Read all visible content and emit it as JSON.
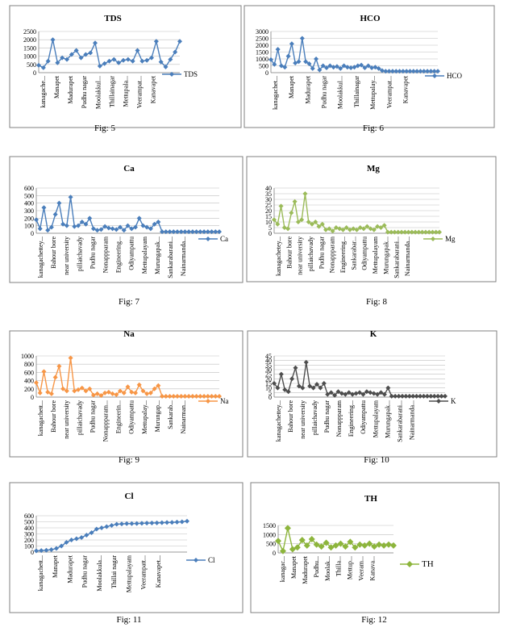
{
  "charts": [
    {
      "id": "tds",
      "caption": "Fig: 5",
      "color": "#4a7ebb",
      "marker": "diamond",
      "chart_data": {
        "type": "line",
        "title": "TDS",
        "legend": "right",
        "ylim": [
          0,
          2500
        ],
        "yticks": [
          0,
          500,
          1000,
          1500,
          2000,
          2500
        ],
        "grid": true,
        "tick_labels": [
          "kanagache...",
          "Manapet",
          "Madurapet",
          "Pudhu nagar",
          "Moolakkul...",
          "Thillainagar",
          "Mettupala...",
          "Veerampat...",
          "Kanavapet"
        ],
        "series": [
          {
            "name": "TDS",
            "values": [
              450,
              300,
              700,
              2000,
              600,
              900,
              800,
              1100,
              1350,
              900,
              1100,
              1200,
              1800,
              400,
              550,
              700,
              800,
              600,
              750,
              800,
              700,
              1350,
              700,
              750,
              900,
              1900,
              650,
              350,
              800,
              1250,
              1900
            ]
          }
        ]
      }
    },
    {
      "id": "hco",
      "caption": "Fig: 6",
      "color": "#4a7ebb",
      "marker": "diamond",
      "chart_data": {
        "type": "line",
        "title": "HCO",
        "legend": "right",
        "ylim": [
          0,
          3000
        ],
        "yticks": [
          0,
          500,
          1000,
          1500,
          2000,
          2500,
          3000
        ],
        "grid": true,
        "tick_labels": [
          "kanagachet...",
          "Manapet",
          "Madurapet",
          "Pudhu nagar",
          "Moolakkul...",
          "Thillainagar",
          "Mettupalay...",
          "Veerampat...",
          "Kanavapet"
        ],
        "series": [
          {
            "name": "HCO",
            "values": [
              950,
              600,
              1700,
              500,
              400,
              1200,
              2100,
              700,
              800,
              2500,
              800,
              650,
              300,
              1000,
              200,
              500,
              350,
              500,
              400,
              450,
              300,
              500,
              400,
              350,
              400,
              500,
              550,
              350,
              500,
              350,
              400,
              300,
              150,
              100,
              100,
              100,
              100,
              100,
              100,
              100,
              100,
              100,
              100,
              100,
              100,
              100,
              100,
              100,
              100
            ]
          }
        ]
      }
    },
    {
      "id": "ca",
      "caption": "Fig: 7",
      "color": "#4a7ebb",
      "marker": "diamond",
      "chart_data": {
        "type": "line",
        "title": "Ca",
        "legend": "right",
        "ylim": [
          0,
          600
        ],
        "yticks": [
          0,
          100,
          200,
          300,
          400,
          500,
          600
        ],
        "grid": true,
        "tick_labels": [
          "kanagachettey...",
          "Bahour bore",
          "near university",
          "pillaichavady",
          "Pudhu nagar",
          "Nonappparam",
          "Engineering...",
          "Odiyampattu",
          "Mettupalayam",
          "Murungapak...",
          "Sankarabarani...",
          "Nainarmanda..."
        ],
        "series": [
          {
            "name": "Ca",
            "values": [
              180,
              60,
              340,
              40,
              80,
              250,
              400,
              120,
              100,
              480,
              90,
              100,
              150,
              120,
              200,
              60,
              40,
              50,
              90,
              70,
              60,
              50,
              80,
              40,
              100,
              60,
              80,
              200,
              100,
              80,
              60,
              120,
              150,
              20,
              20,
              20,
              20,
              20,
              20,
              20,
              20,
              20,
              20,
              20,
              20,
              20,
              20,
              20,
              20
            ]
          }
        ]
      }
    },
    {
      "id": "mg",
      "caption": "Fig: 8",
      "color": "#9bbb59",
      "marker": "diamond",
      "chart_data": {
        "type": "line",
        "title": "Mg",
        "legend": "right",
        "ylim": [
          0,
          40
        ],
        "yticks": [
          0,
          5,
          10,
          15,
          20,
          25,
          30,
          35,
          40
        ],
        "grid": true,
        "tick_labels": [
          "kanagachetey...",
          "Bahour bore",
          "near university",
          "pillaichavady",
          "Pudhu nagar",
          "Nonappparam",
          "Engineering...",
          "Sankarabar...",
          "Odiyampattu",
          "Mettupalayam",
          "Murungapak...",
          "Sankarabarani...",
          "Nainarmanda..."
        ],
        "series": [
          {
            "name": "Mg",
            "values": [
              12,
              8,
              24,
              5,
              4,
              18,
              28,
              10,
              12,
              35,
              10,
              8,
              10,
              6,
              8,
              3,
              4,
              2,
              5,
              4,
              3,
              5,
              3,
              4,
              3,
              5,
              4,
              6,
              4,
              3,
              6,
              5,
              7,
              1,
              1,
              1,
              1,
              1,
              1,
              1,
              1,
              1,
              1,
              1,
              1,
              1,
              1,
              1,
              1
            ]
          }
        ]
      }
    },
    {
      "id": "na",
      "caption": "Fig: 9",
      "color": "#f79646",
      "marker": "diamond",
      "chart_data": {
        "type": "line",
        "title": "Na",
        "legend": "right",
        "ylim": [
          0,
          1000
        ],
        "yticks": [
          0,
          200,
          400,
          600,
          800,
          1000
        ],
        "grid": true,
        "tick_labels": [
          "kanagachett...",
          "Bahour bore",
          "near university",
          "pillaichavady",
          "Pudhu nagar",
          "Nonappparam...",
          "Engineerin...",
          "Odiyampattu",
          "Mettupalay...",
          "Murungap...",
          "Sankarab...",
          "Nainarman..."
        ],
        "series": [
          {
            "name": "Na",
            "values": [
              350,
              100,
              620,
              120,
              80,
              480,
              750,
              200,
              150,
              950,
              150,
              180,
              220,
              150,
              200,
              50,
              80,
              40,
              100,
              120,
              80,
              60,
              150,
              100,
              250,
              120,
              100,
              300,
              150,
              80,
              100,
              200,
              280,
              20,
              20,
              20,
              20,
              20,
              20,
              20,
              20,
              20,
              20,
              20,
              20,
              20,
              20,
              20,
              20
            ]
          }
        ]
      }
    },
    {
      "id": "k",
      "caption": "Fig: 10",
      "color": "#4d4d4d",
      "marker": "diamond",
      "chart_data": {
        "type": "line",
        "title": "K",
        "legend": "right",
        "ylim": [
          0,
          45
        ],
        "yticks": [
          0,
          5,
          10,
          15,
          20,
          25,
          30,
          35,
          40,
          45
        ],
        "grid": true,
        "tick_labels": [
          "kanagachettey...",
          "Bahour bore",
          "near university",
          "pillaichavady",
          "Pudhu nagar",
          "Nonappparam",
          "Engineering...",
          "Odiyampattu",
          "Mettupalayam",
          "Murungapak...",
          "Sankarabarani...",
          "Nainarmanda..."
        ],
        "series": [
          {
            "name": "K",
            "values": [
              15,
              10,
              25,
              8,
              6,
              20,
              32,
              12,
              10,
              38,
              12,
              10,
              14,
              10,
              15,
              3,
              5,
              2,
              6,
              4,
              3,
              5,
              3,
              4,
              5,
              3,
              6,
              5,
              4,
              3,
              5,
              3,
              10,
              1,
              1,
              1,
              1,
              1,
              1,
              1,
              1,
              1,
              1,
              1,
              1,
              1,
              1,
              1,
              1
            ]
          }
        ]
      }
    },
    {
      "id": "cl",
      "caption": "Fig: 11",
      "color": "#4a7ebb",
      "marker": "diamond",
      "chart_data": {
        "type": "line",
        "title": "Cl",
        "legend": "right",
        "ylim": [
          0,
          600
        ],
        "yticks": [
          0,
          100,
          200,
          300,
          400,
          500,
          600
        ],
        "grid": true,
        "tick_labels": [
          "kanagachett...",
          "Manapet",
          "Madurapet",
          "Pudhu nagar",
          "Moolakkula...",
          "Thillai nagar",
          "Mettupalayam",
          "Veerampatt...",
          "Kanavapet..."
        ],
        "series": [
          {
            "name": "Cl",
            "values": [
              20,
              25,
              30,
              40,
              60,
              100,
              160,
              200,
              220,
              240,
              280,
              320,
              380,
              400,
              420,
              440,
              460,
              465,
              470,
              470,
              472,
              475,
              478,
              480,
              482,
              485,
              488,
              490,
              495,
              500,
              510
            ]
          }
        ]
      }
    },
    {
      "id": "th",
      "caption": "Fig: 12",
      "color": "#8db53c",
      "marker": "diamond-large",
      "chart_data": {
        "type": "line",
        "title": "TH",
        "legend": "right",
        "ylim": [
          0,
          1500
        ],
        "yticks": [
          0,
          500,
          1000,
          1500
        ],
        "grid": true,
        "tick_labels": [
          "kanagac...",
          "Manapet",
          "Madurapet",
          "Pudhu...",
          "Moolak...",
          "Thilla...",
          "Mettup...",
          "Veeram...",
          "Kanava..."
        ],
        "series": [
          {
            "name": "TH",
            "values": [
              650,
              100,
              1350,
              200,
              300,
              700,
              400,
              750,
              450,
              350,
              550,
              300,
              400,
              500,
              350,
              600,
              300,
              450,
              400,
              500,
              350,
              450,
              400,
              450,
              400
            ]
          }
        ]
      }
    }
  ]
}
